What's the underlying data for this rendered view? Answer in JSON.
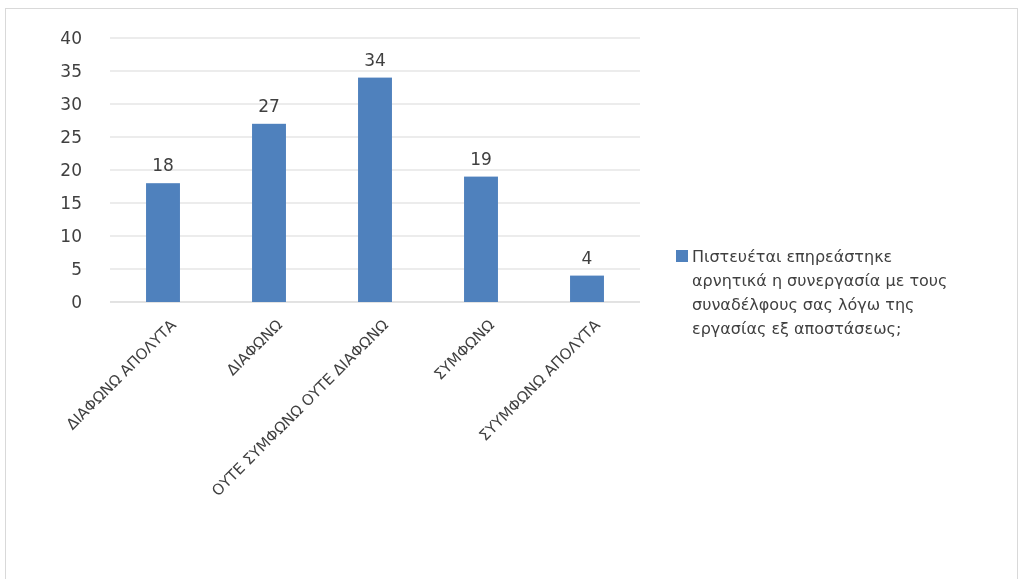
{
  "chart_data": {
    "type": "bar",
    "categories": [
      "ΔΙΑΦΩΝΩ ΑΠΟΛΥΤΑ",
      "ΔΙΑΦΩΝΩ",
      "ΟΥΤΕ ΣΥΜΦΩΝΩ ΟΥΤΕ ΔΙΑΦΩΝΩ",
      "ΣΥΜΦΩΝΩ",
      "ΣΥΥΜΦΩΝΩ ΑΠΟΛΥΤΑ"
    ],
    "series": [
      {
        "name": "Πιστευέται επηρεάστηκε αρνητικά η συνεργασία με τους συναδέλφους σας λόγω της εργασίας εξ αποστάσεως;",
        "color": "#4f81bd",
        "values": [
          18,
          27,
          34,
          19,
          4
        ]
      }
    ],
    "ylim": [
      0,
      40
    ],
    "yticks": [
      0,
      5,
      10,
      15,
      20,
      25,
      30,
      35,
      40
    ],
    "grid": "y",
    "legend": "right",
    "data_labels": true
  }
}
